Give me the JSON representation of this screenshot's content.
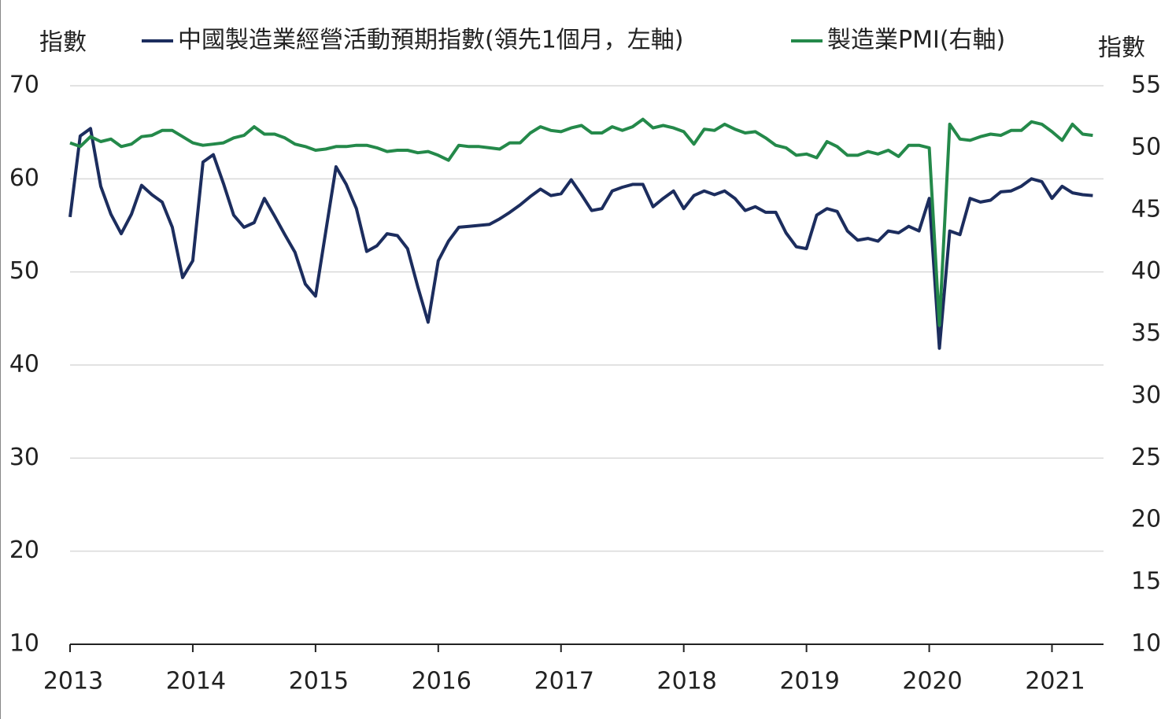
{
  "chart_data": {
    "type": "line",
    "y_label": "指數",
    "y2_label": "指數",
    "x": [
      2013,
      2013.083,
      2013.167,
      2013.25,
      2013.333,
      2013.417,
      2013.5,
      2013.583,
      2013.667,
      2013.75,
      2013.833,
      2013.917,
      2014,
      2014.083,
      2014.167,
      2014.25,
      2014.333,
      2014.417,
      2014.5,
      2014.583,
      2014.667,
      2014.75,
      2014.833,
      2014.917,
      2015,
      2015.083,
      2015.167,
      2015.25,
      2015.333,
      2015.417,
      2015.5,
      2015.583,
      2015.667,
      2015.75,
      2015.833,
      2015.917,
      2016,
      2016.083,
      2016.167,
      2016.25,
      2016.333,
      2016.417,
      2016.5,
      2016.583,
      2016.667,
      2016.75,
      2016.833,
      2016.917,
      2017,
      2017.083,
      2017.167,
      2017.25,
      2017.333,
      2017.417,
      2017.5,
      2017.583,
      2017.667,
      2017.75,
      2017.833,
      2017.917,
      2018,
      2018.083,
      2018.167,
      2018.25,
      2018.333,
      2018.417,
      2018.5,
      2018.583,
      2018.667,
      2018.75,
      2018.833,
      2018.917,
      2019,
      2019.083,
      2019.167,
      2019.25,
      2019.333,
      2019.417,
      2019.5,
      2019.583,
      2019.667,
      2019.75,
      2019.833,
      2019.917,
      2020,
      2020.083,
      2020.167,
      2020.25,
      2020.333,
      2020.417,
      2020.5,
      2020.583,
      2020.667,
      2020.75,
      2020.833,
      2020.917,
      2021,
      2021.083,
      2021.167,
      2021.25,
      2021.333
    ],
    "series": [
      {
        "name": "中國製造業經營活動預期指數(領先1個月，左軸)",
        "color": "#1c2d5e",
        "axis": "y",
        "values": [
          55.9,
          64.6,
          65.4,
          59.2,
          56.2,
          54.1,
          56.2,
          59.3,
          58.3,
          57.5,
          54.8,
          49.4,
          51.2,
          61.8,
          62.6,
          59.5,
          56.1,
          54.8,
          55.3,
          57.9,
          56.0,
          54.0,
          52.1,
          48.7,
          47.4,
          54.3,
          61.3,
          59.4,
          56.8,
          52.2,
          52.8,
          54.1,
          53.9,
          52.5,
          48.4,
          44.6,
          51.2,
          53.3,
          54.8,
          54.9,
          55.0,
          55.1,
          55.7,
          56.4,
          57.2,
          58.1,
          58.9,
          58.2,
          58.4,
          59.9,
          58.3,
          56.6,
          56.8,
          58.7,
          59.1,
          59.4,
          59.4,
          57.0,
          57.9,
          58.7,
          56.8,
          58.2,
          58.7,
          58.3,
          58.7,
          57.9,
          56.6,
          57.0,
          56.4,
          56.4,
          54.2,
          52.7,
          52.5,
          56.1,
          56.8,
          56.5,
          54.4,
          53.4,
          53.6,
          53.3,
          54.4,
          54.2,
          54.9,
          54.4,
          57.9,
          41.8,
          54.4,
          54.0,
          57.9,
          57.5,
          57.7,
          58.6,
          58.7,
          59.2,
          60.0,
          59.7,
          57.9,
          59.2,
          58.5,
          58.3,
          58.2
        ]
      },
      {
        "name": "製造業PMI(右軸)",
        "color": "#24894a",
        "axis": "y2",
        "values": [
          50.4,
          50.1,
          50.9,
          50.5,
          50.7,
          50.1,
          50.3,
          50.9,
          51.0,
          51.4,
          51.4,
          50.9,
          50.4,
          50.2,
          50.3,
          50.4,
          50.8,
          51.0,
          51.7,
          51.1,
          51.1,
          50.8,
          50.3,
          50.1,
          49.8,
          49.9,
          50.1,
          50.1,
          50.2,
          50.2,
          50.0,
          49.7,
          49.8,
          49.8,
          49.6,
          49.7,
          49.4,
          49.0,
          50.2,
          50.1,
          50.1,
          50.0,
          49.9,
          50.4,
          50.4,
          51.2,
          51.7,
          51.4,
          51.3,
          51.6,
          51.8,
          51.2,
          51.2,
          51.7,
          51.4,
          51.7,
          52.3,
          51.6,
          51.8,
          51.6,
          51.3,
          50.3,
          51.5,
          51.4,
          51.9,
          51.5,
          51.2,
          51.3,
          50.8,
          50.2,
          50.0,
          49.4,
          49.5,
          49.2,
          50.5,
          50.1,
          49.4,
          49.4,
          49.7,
          49.5,
          49.8,
          49.3,
          50.2,
          50.2,
          50.0,
          35.7,
          51.9,
          50.7,
          50.6,
          50.9,
          51.1,
          51.0,
          51.4,
          51.4,
          52.1,
          51.9,
          51.3,
          50.6,
          51.9,
          51.1,
          51.0
        ]
      }
    ],
    "xlim": [
      2013,
      2021.42
    ],
    "xticks": [
      2013,
      2014,
      2015,
      2016,
      2017,
      2018,
      2019,
      2020,
      2021
    ],
    "ylim": [
      10,
      70
    ],
    "yticks": [
      10,
      20,
      30,
      40,
      50,
      60,
      70
    ],
    "y2lim": [
      10,
      55
    ],
    "y2ticks": [
      10,
      15,
      20,
      25,
      30,
      35,
      40,
      45,
      50,
      55
    ],
    "grid": true,
    "legend": "top"
  }
}
